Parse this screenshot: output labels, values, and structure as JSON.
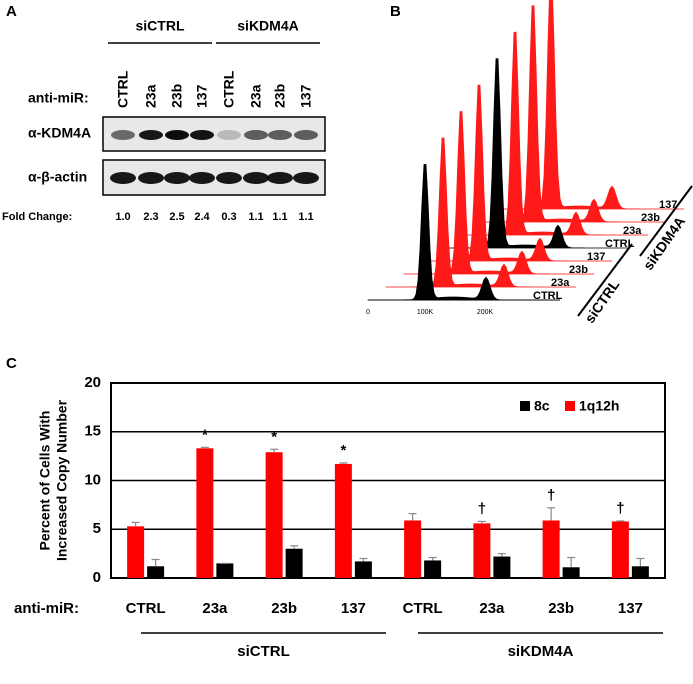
{
  "panel_a": {
    "letter": "A",
    "groups": [
      "siCTRL",
      "siKDM4A"
    ],
    "row_label": "anti-miR:",
    "lanes": [
      "CTRL",
      "23a",
      "23b",
      "137",
      "CTRL",
      "23a",
      "23b",
      "137"
    ],
    "blots": [
      "α-KDM4A",
      "α-β-actin"
    ],
    "fold_change_label": "Fold Change:",
    "fold_change": [
      "1.0",
      "2.3",
      "2.5",
      "2.4",
      "0.3",
      "1.1",
      "1.1",
      "1.1"
    ]
  },
  "panel_b": {
    "letter": "B",
    "traces": [
      "CTRL",
      "23a",
      "23b",
      "137",
      "CTRL",
      "23a",
      "23b",
      "137"
    ],
    "groups": [
      "siCTRL",
      "siKDM4A"
    ],
    "x_ticks": [
      "0",
      "100K",
      "200K"
    ]
  },
  "panel_c": {
    "letter": "C"
  },
  "chart_data": {
    "type": "bar",
    "y_label": [
      "Percent of Cells With",
      "Increased Copy Number"
    ],
    "row_label": "anti-miR:",
    "categories": [
      "CTRL",
      "23a",
      "23b",
      "137",
      "CTRL",
      "23a",
      "23b",
      "137"
    ],
    "groups": [
      "siCTRL",
      "siKDM4A"
    ],
    "series": [
      {
        "name": "8c",
        "color": "#000000",
        "values": [
          1.2,
          1.5,
          3.0,
          1.7,
          1.8,
          2.2,
          1.1,
          1.2
        ],
        "errors": [
          0.7,
          0,
          0.3,
          0.3,
          0.3,
          0.3,
          1.0,
          0.8
        ]
      },
      {
        "name": "1q12h",
        "color": "#ff0000",
        "values": [
          5.3,
          13.3,
          12.9,
          11.7,
          5.9,
          5.6,
          5.9,
          5.8
        ],
        "errors": [
          0.4,
          0.1,
          0.3,
          0.1,
          0.7,
          0.2,
          1.3,
          0.05
        ]
      }
    ],
    "annotations": [
      null,
      "*",
      "*",
      "*",
      null,
      "†",
      "†",
      "†"
    ],
    "ylim": [
      0,
      20
    ],
    "yticks": [
      0,
      5,
      10,
      15,
      20
    ],
    "grid": true,
    "legend": "top-right"
  }
}
